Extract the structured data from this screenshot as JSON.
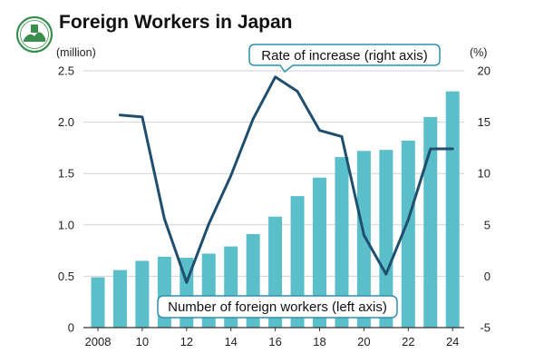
{
  "chart_data": {
    "type": "bar",
    "title": "Foreign Workers in Japan",
    "left_axis_unit": "(million)",
    "right_axis_unit": "(%)",
    "categories": [
      "2008",
      "2009",
      "2010",
      "2011",
      "2012",
      "2013",
      "2014",
      "2015",
      "2016",
      "2017",
      "2018",
      "2019",
      "2020",
      "2021",
      "2022",
      "2023",
      "2024"
    ],
    "x_tick_labels": [
      "2008",
      "10",
      "12",
      "14",
      "16",
      "18",
      "20",
      "22",
      "24"
    ],
    "y_left": {
      "min": 0,
      "max": 2.5,
      "ticks": [
        "0",
        "0.5",
        "1.0",
        "1.5",
        "2.0",
        "2.5"
      ]
    },
    "y_right": {
      "min": -5,
      "max": 20,
      "ticks": [
        "-5",
        "0",
        "5",
        "10",
        "15",
        "20"
      ]
    },
    "series": [
      {
        "name": "Number of foreign workers (left axis)",
        "type": "bar",
        "axis": "left",
        "color": "#5bbfca",
        "values": [
          0.49,
          0.56,
          0.65,
          0.69,
          0.68,
          0.72,
          0.79,
          0.91,
          1.08,
          1.28,
          1.46,
          1.66,
          1.72,
          1.73,
          1.82,
          2.05,
          2.3
        ]
      },
      {
        "name": "Rate of increase (right axis)",
        "type": "line",
        "axis": "right",
        "color": "#1f4e6e",
        "values": [
          null,
          15.7,
          15.5,
          5.6,
          -0.6,
          5.1,
          9.8,
          15.3,
          19.4,
          18.0,
          14.2,
          13.6,
          4.0,
          0.2,
          5.5,
          12.4,
          12.4
        ]
      }
    ],
    "annotations": {
      "line_label": "Rate of increase (right axis)",
      "bar_label": "Number of foreign workers (left axis)"
    },
    "grid": "horizontal"
  }
}
